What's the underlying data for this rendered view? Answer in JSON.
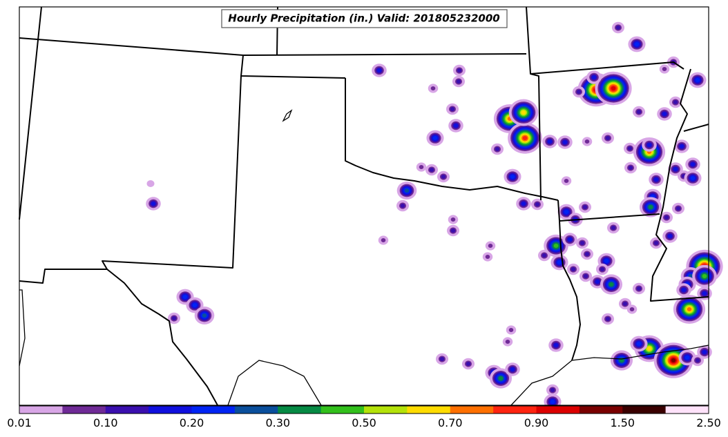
{
  "title": "Hourly Precipitation (in.) Valid: 201805232000",
  "colorbar": {
    "labels": [
      "0.01",
      "0.10",
      "0.20",
      "0.30",
      "0.50",
      "0.70",
      "0.90",
      "1.50",
      "2.50"
    ],
    "colors": [
      "#d8a6e6",
      "#6f2a96",
      "#3a0fae",
      "#1010de",
      "#0024f4",
      "#0a4f9c",
      "#068a44",
      "#32c01c",
      "#b4e20a",
      "#ffdc00",
      "#ff7000",
      "#ff2410",
      "#dc0000",
      "#7a0000",
      "#3a0000",
      "#ffe2fa"
    ]
  }
}
